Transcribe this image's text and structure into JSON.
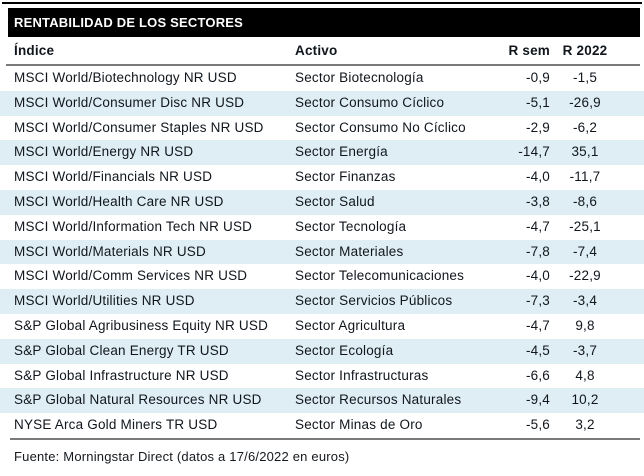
{
  "title": "RENTABILIDAD DE LOS SECTORES",
  "table": {
    "headers": {
      "indice": "Índice",
      "activo": "Activo",
      "r_sem": "R sem",
      "r_2022": "R 2022"
    }
  },
  "footer": {
    "source": "Fuente: Morningstar Direct (datos a 17/6/2022 en euros)"
  },
  "colors": {
    "title_bg": "#000000",
    "title_text": "#ffffff",
    "row_alt_bg": "#dfeef5",
    "divider_gray": "#7a7a7a",
    "top_border": "#000000",
    "body_text": "#10161c"
  },
  "chart_data": {
    "type": "table",
    "title": "RENTABILIDAD DE LOS SECTORES",
    "columns": [
      "Índice",
      "Activo",
      "R sem",
      "R 2022"
    ],
    "rows": [
      [
        "MSCI World/Biotechnology NR USD",
        "Sector Biotecnología",
        "-0,9",
        "-1,5"
      ],
      [
        "MSCI World/Consumer Disc NR USD",
        "Sector Consumo Cíclico",
        "-5,1",
        "-26,9"
      ],
      [
        "MSCI World/Consumer Staples NR USD",
        "Sector Consumo No Cíclico",
        "-2,9",
        "-6,2"
      ],
      [
        "MSCI World/Energy NR USD",
        "Sector Energía",
        "-14,7",
        "35,1"
      ],
      [
        "MSCI World/Financials NR USD",
        "Sector Finanzas",
        "-4,0",
        "-11,7"
      ],
      [
        "MSCI World/Health Care NR USD",
        "Sector Salud",
        "-3,8",
        "-8,6"
      ],
      [
        "MSCI World/Information Tech NR USD",
        "Sector Tecnología",
        "-4,7",
        "-25,1"
      ],
      [
        "MSCI World/Materials NR USD",
        "Sector Materiales",
        "-7,8",
        "-7,4"
      ],
      [
        "MSCI World/Comm Services NR USD",
        "Sector Telecomunicaciones",
        "-4,0",
        "-22,9"
      ],
      [
        "MSCI World/Utilities NR USD",
        "Sector Servicios Públicos",
        "-7,3",
        "-3,4"
      ],
      [
        "S&P Global Agribusiness Equity NR USD",
        "Sector Agricultura",
        "-4,7",
        "9,8"
      ],
      [
        "S&P Global Clean Energy TR USD",
        "Sector Ecología",
        "-4,5",
        "-3,7"
      ],
      [
        "S&P Global Infrastructure NR USD",
        "Sector Infrastructuras",
        "-6,6",
        "4,8"
      ],
      [
        "S&P Global Natural Resources NR USD",
        "Sector Recursos Naturales",
        "-9,4",
        "10,2"
      ],
      [
        "NYSE Arca Gold Miners TR USD",
        "Sector Minas de Oro",
        "-5,6",
        "3,2"
      ]
    ],
    "series": [
      {
        "name": "R sem",
        "values": [
          -0.9,
          -5.1,
          -2.9,
          -14.7,
          -4.0,
          -3.8,
          -4.7,
          -7.8,
          -4.0,
          -7.3,
          -4.7,
          -4.5,
          -6.6,
          -9.4,
          -5.6
        ]
      },
      {
        "name": "R 2022",
        "values": [
          -1.5,
          -26.9,
          -6.2,
          35.1,
          -11.7,
          -8.6,
          -25.1,
          -7.4,
          -22.9,
          -3.4,
          9.8,
          -3.7,
          4.8,
          10.2,
          3.2
        ]
      }
    ],
    "source": "Fuente: Morningstar Direct (datos a 17/6/2022 en euros)"
  }
}
